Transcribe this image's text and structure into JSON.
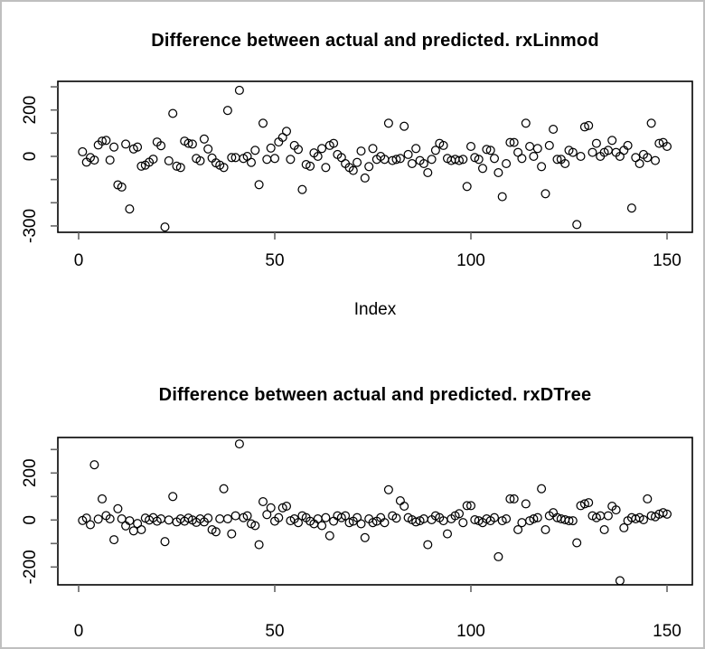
{
  "window": {
    "background": "#ffffff",
    "frame_color": "#bfbfbf",
    "axis_color": "#000000",
    "tick_color": "#666666",
    "marker": "open-circle",
    "marker_stroke": "#000000"
  },
  "chart_data": [
    {
      "type": "scatter",
      "title": "Difference between actual and predicted. rxLinmod",
      "xlabel": "Index",
      "ylabel": "",
      "x_description": "observation index 1..150",
      "xlim": [
        -5,
        156
      ],
      "ylim": [
        -327,
        323
      ],
      "grid": false,
      "legend": false,
      "xticks": {
        "values": [
          0,
          50,
          100,
          150
        ],
        "labels": [
          "0",
          "50",
          "100",
          "150"
        ]
      },
      "yticks": {
        "values": [
          300,
          200,
          100,
          0,
          -100,
          -200,
          -300
        ],
        "labels": [
          "",
          "200",
          "",
          "0",
          "",
          "",
          "-300"
        ]
      },
      "values": [
        20,
        -25,
        -5,
        -16,
        49,
        66,
        69,
        -16,
        40,
        -123,
        -132,
        53,
        -227,
        32,
        40,
        -42,
        -38,
        -25,
        -12,
        62,
        46,
        -305,
        -19,
        185,
        -42,
        -48,
        66,
        56,
        53,
        -9,
        -19,
        75,
        32,
        -7,
        -28,
        -38,
        -48,
        198,
        -5,
        -5,
        285,
        -9,
        0,
        -26,
        26,
        -122,
        143,
        -13,
        36,
        -9,
        62,
        82,
        108,
        -13,
        47,
        30,
        -143,
        -35,
        -42,
        15,
        0,
        34,
        -48,
        47,
        56,
        8,
        -5,
        -31,
        -48,
        -61,
        -26,
        23,
        -93,
        -44,
        34,
        -13,
        0,
        -13,
        143,
        -18,
        -13,
        -9,
        130,
        8,
        -31,
        34,
        -18,
        -31,
        -70,
        -13,
        26,
        56,
        47,
        -9,
        -18,
        -13,
        -18,
        -13,
        -130,
        43,
        -5,
        -13,
        -52,
        30,
        26,
        -9,
        -70,
        -174,
        -31,
        60,
        60,
        17,
        -9,
        143,
        43,
        0,
        34,
        -44,
        -161,
        47,
        117,
        -13,
        -13,
        -31,
        26,
        17,
        -294,
        0,
        127,
        133,
        17,
        56,
        0,
        17,
        26,
        69,
        17,
        0,
        26,
        47,
        -223,
        -5,
        -31,
        8,
        -5,
        143,
        -18,
        56,
        60,
        43
      ]
    },
    {
      "type": "scatter",
      "title": "Difference between actual and predicted. rxDTree",
      "xlabel": "",
      "ylabel": "",
      "x_description": "observation index 1..150",
      "xlim": [
        -5,
        156
      ],
      "ylim": [
        -275,
        350
      ],
      "grid": false,
      "legend": false,
      "xticks": {
        "values": [
          0,
          50,
          100,
          150
        ],
        "labels": [
          "0",
          "50",
          "100",
          "150"
        ]
      },
      "yticks": {
        "values": [
          300,
          200,
          100,
          0,
          -100,
          -200
        ],
        "labels": [
          "",
          "200",
          "",
          "0",
          "",
          "-200"
        ]
      },
      "values": [
        -2,
        8,
        -20,
        235,
        4,
        90,
        19,
        5,
        -84,
        48,
        5,
        -25,
        -3,
        -46,
        -15,
        -41,
        8,
        0,
        10,
        -5,
        5,
        -92,
        0,
        100,
        -8,
        5,
        -5,
        8,
        0,
        -10,
        5,
        -8,
        8,
        -41,
        -50,
        5,
        133,
        5,
        -59,
        18,
        324,
        10,
        18,
        -16,
        -24,
        -105,
        78,
        23,
        52,
        -5,
        10,
        52,
        59,
        -3,
        5,
        -11,
        18,
        10,
        -5,
        -16,
        5,
        -24,
        10,
        -67,
        -5,
        18,
        10,
        18,
        -11,
        -5,
        10,
        -16,
        -75,
        5,
        -11,
        -5,
        10,
        -11,
        129,
        18,
        8,
        82,
        59,
        10,
        1,
        -8,
        -3,
        5,
        -105,
        1,
        18,
        10,
        -3,
        -59,
        5,
        18,
        27,
        -11,
        61,
        61,
        1,
        -3,
        -11,
        5,
        -3,
        10,
        -156,
        -3,
        5,
        90,
        90,
        -41,
        -11,
        69,
        -3,
        5,
        10,
        133,
        -41,
        18,
        31,
        10,
        5,
        1,
        -3,
        -3,
        -97,
        61,
        69,
        74,
        18,
        10,
        18,
        -41,
        18,
        59,
        43,
        -258,
        -33,
        -3,
        10,
        5,
        10,
        1,
        90,
        18,
        14,
        25,
        31,
        25
      ]
    }
  ]
}
